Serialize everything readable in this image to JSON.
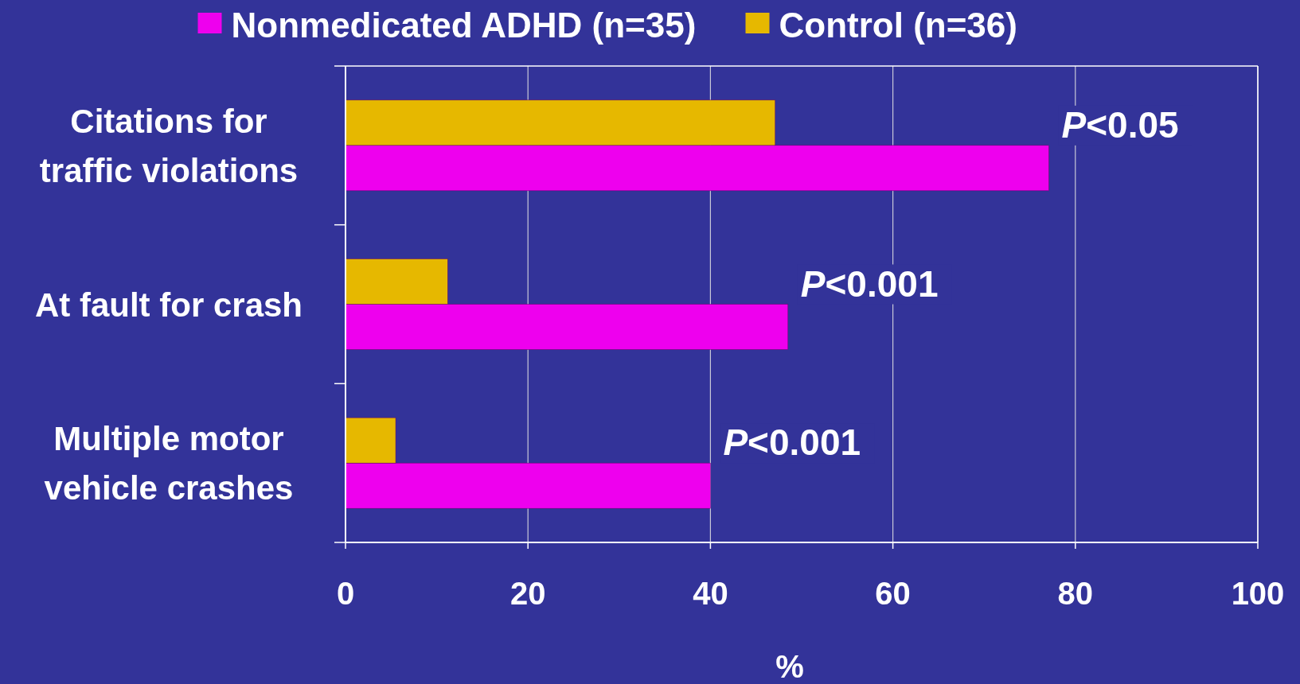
{
  "chart_data": {
    "type": "bar",
    "orientation": "horizontal",
    "categories": [
      "Citations for traffic violations",
      "At fault for crash",
      "Multiple motor vehicle crashes"
    ],
    "series": [
      {
        "name": "Nonmedicated ADHD (n=35)",
        "color": "#ee00ee",
        "values": [
          77.1,
          48.5,
          40.0
        ]
      },
      {
        "name": "Control (n=36)",
        "color": "#e6b800",
        "values": [
          47.1,
          11.2,
          5.5
        ]
      }
    ],
    "xlim": [
      0,
      100
    ],
    "xticks": [
      0,
      20,
      40,
      60,
      80,
      100
    ],
    "xlabel": "%",
    "grid": "x",
    "legend": "top",
    "annotations": [
      {
        "text": "P<0.05",
        "x": 77.1,
        "y": "Citations for traffic violations"
      },
      {
        "text": "P<0.001",
        "x": 48.5,
        "y": "At fault for crash"
      },
      {
        "text": "P<0.001",
        "x": 40.0,
        "y": "Multiple motor vehicle crashes"
      }
    ]
  }
}
